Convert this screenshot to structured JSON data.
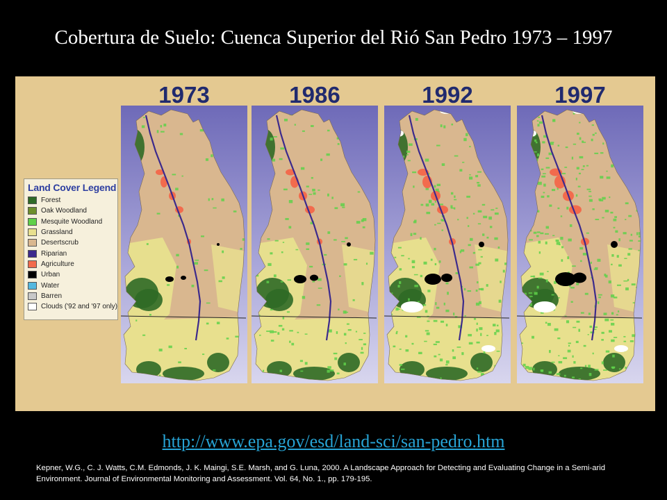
{
  "title": "Cobertura de Suelo: Cuenca Superior del Rió San Pedro 1973 – 1997",
  "maps": [
    {
      "year": "1973"
    },
    {
      "year": "1986"
    },
    {
      "year": "1992"
    },
    {
      "year": "1997"
    }
  ],
  "legend": {
    "title": "Land Cover Legend",
    "items": [
      {
        "label": "Forest",
        "color": "#2f6a26"
      },
      {
        "label": "Oak Woodland",
        "color": "#6e8f2c"
      },
      {
        "label": "Mesquite Woodland",
        "color": "#5fd14a"
      },
      {
        "label": "Grassland",
        "color": "#e8e08e"
      },
      {
        "label": "Desertscrub",
        "color": "#d9b78f"
      },
      {
        "label": "Riparian",
        "color": "#3c2a8c"
      },
      {
        "label": "Agriculture",
        "color": "#f26b4d"
      },
      {
        "label": "Urban",
        "color": "#000000"
      },
      {
        "label": "Water",
        "color": "#55b8e0"
      },
      {
        "label": "Barren",
        "color": "#c8c8c8"
      },
      {
        "label": "Clouds ('92 and '97 only)",
        "color": "#ffffff"
      }
    ]
  },
  "url": "http://www.epa.gov/esd/land-sci/san-pedro.htm",
  "citation": "Kepner, W.G., C. J. Watts, C.M. Edmonds, J. K. Maingi, S.E. Marsh, and G. Luna, 2000. A Landscape Approach for Detecting and Evaluating Change in a Semi-arid Environment. Journal of Environmental Monitoring and Assessment. Vol. 64, No. 1., pp. 179-195.",
  "colors": {
    "background": "#000000",
    "figure_background": "#e4c991",
    "map_frame": "#8a86c4",
    "year_text": "#202a6e",
    "link": "#27a3d4",
    "river": "#3c2a8c",
    "desertscrub": "#d9b78f",
    "grassland": "#e8e08e",
    "forest": "#2f6a26",
    "mesquite": "#5fd14a",
    "agriculture": "#f26b4d",
    "urban": "#000000",
    "clouds": "#ffffff"
  }
}
